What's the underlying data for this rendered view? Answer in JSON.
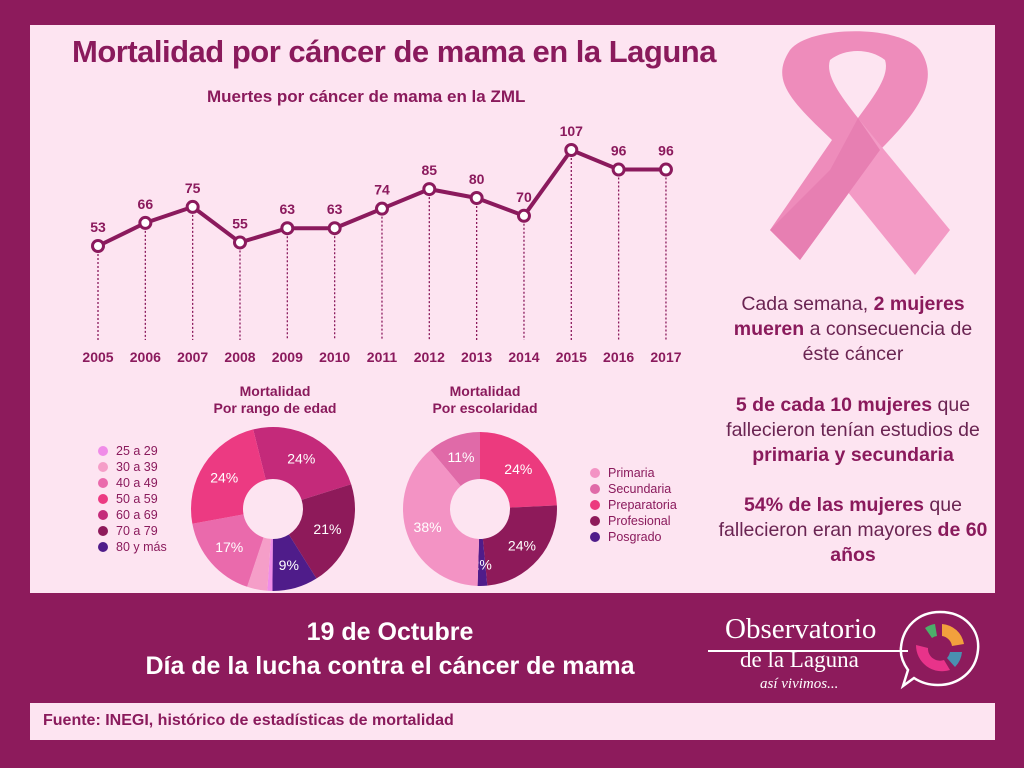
{
  "title": "Mortalidad por cáncer de mama en la Laguna",
  "colors": {
    "frame": "#8d1b5c",
    "panel": "#fde4f1",
    "line": "#8b1a5d",
    "ribbon": "#ef8dbd"
  },
  "chart_data": [
    {
      "type": "line",
      "title": "Muertes por cáncer de mama en la ZML",
      "x": [
        "2005",
        "2006",
        "2007",
        "2008",
        "2009",
        "2010",
        "2011",
        "2012",
        "2013",
        "2014",
        "2015",
        "2016",
        "2017"
      ],
      "values": [
        53,
        66,
        75,
        55,
        63,
        63,
        74,
        85,
        80,
        70,
        107,
        96,
        96
      ],
      "xlabel": "",
      "ylabel": "",
      "ylim": [
        53,
        107
      ],
      "grid": false
    },
    {
      "type": "pie",
      "title": [
        "Mortalidad",
        "Por rango de edad"
      ],
      "legend_position": "left",
      "slices": [
        {
          "label": "25 a 29",
          "value": 1,
          "pct_label": "",
          "color": "#f08ce8"
        },
        {
          "label": "30 a 39",
          "value": 4,
          "pct_label": "",
          "color": "#f59ec8"
        },
        {
          "label": "40 a 49",
          "value": 17,
          "pct_label": "17%",
          "color": "#ea6aac"
        },
        {
          "label": "50 a 59",
          "value": 24,
          "pct_label": "24%",
          "color": "#ec3a82"
        },
        {
          "label": "60 a 69",
          "value": 24,
          "pct_label": "24%",
          "color": "#c42a7a"
        },
        {
          "label": "70 a 79",
          "value": 21,
          "pct_label": "21%",
          "color": "#8e1a5a"
        },
        {
          "label": "80 y más",
          "value": 9,
          "pct_label": "9%",
          "color": "#4f1c8a"
        }
      ],
      "draw_order": [
        4,
        5,
        6,
        0,
        1,
        2,
        3
      ]
    },
    {
      "type": "pie",
      "title": [
        "Mortalidad",
        "Por escolaridad"
      ],
      "legend_position": "right",
      "slices": [
        {
          "label": "Primaria",
          "value": 38,
          "pct_label": "38%",
          "color": "#f393c4"
        },
        {
          "label": "Secundaria",
          "value": 11,
          "pct_label": "11%",
          "color": "#e06aa8"
        },
        {
          "label": "Preparatoria",
          "value": 24,
          "pct_label": "24%",
          "color": "#ec3a7e"
        },
        {
          "label": "Profesional",
          "value": 24,
          "pct_label": "24%",
          "color": "#8e1a5a"
        },
        {
          "label": "Posgrado",
          "value": 2,
          "pct_label": "2%",
          "color": "#4f1c8a"
        }
      ],
      "draw_order": [
        2,
        3,
        4,
        0,
        1
      ]
    }
  ],
  "stats": [
    [
      {
        "t": "Cada semana, ",
        "b": false
      },
      {
        "t": "2 mujeres mueren",
        "b": true
      },
      {
        "t": " a consecuencia de éste cáncer",
        "b": false
      }
    ],
    [
      {
        "t": "5 de cada 10 mujeres",
        "b": true
      },
      {
        "t": " que fallecieron tenían estudios de ",
        "b": false
      },
      {
        "t": "primaria y secundaria",
        "b": true
      }
    ],
    [
      {
        "t": "54% de las mujeres",
        "b": true
      },
      {
        "t": " que fallecieron eran mayores ",
        "b": false
      },
      {
        "t": "de 60 años",
        "b": true
      }
    ]
  ],
  "date_line": "19 de Octubre",
  "day_line": "Día de la lucha contra el cáncer de mama",
  "logo": {
    "line1": "Observatorio",
    "line2": "de la Laguna",
    "line3": "así vivimos..."
  },
  "source": "Fuente: INEGI, histórico de estadísticas de mortalidad"
}
